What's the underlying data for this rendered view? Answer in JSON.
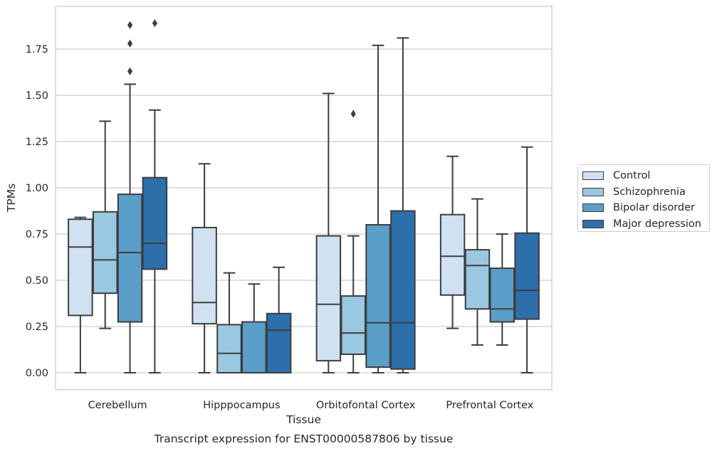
{
  "chart_data": {
    "type": "box",
    "title": "Transcript expression for ENST00000587806 by tissue",
    "xlabel": "Tissue",
    "ylabel": "TPMs",
    "ylim": [
      -0.09,
      1.99
    ],
    "yticks": [
      "0.00",
      "0.25",
      "0.50",
      "0.75",
      "1.00",
      "1.25",
      "1.50",
      "1.75"
    ],
    "grid": "horizontal",
    "legend_position": "right",
    "categories": [
      "Cerebellum",
      "Hipppocampus",
      "Orbitofontal Cortex",
      "Prefrontal Cortex"
    ],
    "series": [
      {
        "name": "Control",
        "color": "#d0e2f2",
        "boxes": [
          {
            "min": 0.0,
            "q1": 0.31,
            "median": 0.68,
            "q3": 0.83,
            "max": 0.84,
            "outliers": []
          },
          {
            "min": 0.0,
            "q1": 0.265,
            "median": 0.38,
            "q3": 0.785,
            "max": 1.13,
            "outliers": []
          },
          {
            "min": 0.0,
            "q1": 0.065,
            "median": 0.37,
            "q3": 0.74,
            "max": 1.51,
            "outliers": []
          },
          {
            "min": 0.24,
            "q1": 0.42,
            "median": 0.63,
            "q3": 0.855,
            "max": 1.17,
            "outliers": []
          }
        ]
      },
      {
        "name": "Schizophrenia",
        "color": "#9ac8e0",
        "boxes": [
          {
            "min": 0.24,
            "q1": 0.43,
            "median": 0.61,
            "q3": 0.87,
            "max": 1.36,
            "outliers": []
          },
          {
            "min": 0.0,
            "q1": 0.0,
            "median": 0.105,
            "q3": 0.26,
            "max": 0.54,
            "outliers": []
          },
          {
            "min": 0.0,
            "q1": 0.1,
            "median": 0.215,
            "q3": 0.415,
            "max": 0.74,
            "outliers": [
              1.4
            ]
          },
          {
            "min": 0.15,
            "q1": 0.345,
            "median": 0.58,
            "q3": 0.665,
            "max": 0.94,
            "outliers": []
          }
        ]
      },
      {
        "name": "Bipolar disorder",
        "color": "#5a9ec9",
        "boxes": [
          {
            "min": 0.0,
            "q1": 0.275,
            "median": 0.65,
            "q3": 0.965,
            "max": 1.56,
            "outliers": [
              1.63,
              1.78,
              1.88
            ]
          },
          {
            "min": 0.0,
            "q1": 0.0,
            "median": 0.0,
            "q3": 0.275,
            "max": 0.48,
            "outliers": []
          },
          {
            "min": 0.0,
            "q1": 0.03,
            "median": 0.27,
            "q3": 0.8,
            "max": 1.77,
            "outliers": []
          },
          {
            "min": 0.15,
            "q1": 0.275,
            "median": 0.345,
            "q3": 0.565,
            "max": 0.75,
            "outliers": []
          }
        ]
      },
      {
        "name": "Major depression",
        "color": "#2d6fab",
        "boxes": [
          {
            "min": 0.0,
            "q1": 0.56,
            "median": 0.7,
            "q3": 1.055,
            "max": 1.42,
            "outliers": [
              1.89
            ]
          },
          {
            "min": 0.0,
            "q1": 0.0,
            "median": 0.23,
            "q3": 0.32,
            "max": 0.57,
            "outliers": []
          },
          {
            "min": 0.0,
            "q1": 0.02,
            "median": 0.27,
            "q3": 0.875,
            "max": 1.81,
            "outliers": []
          },
          {
            "min": 0.0,
            "q1": 0.29,
            "median": 0.445,
            "q3": 0.755,
            "max": 1.22,
            "outliers": []
          }
        ]
      }
    ]
  }
}
